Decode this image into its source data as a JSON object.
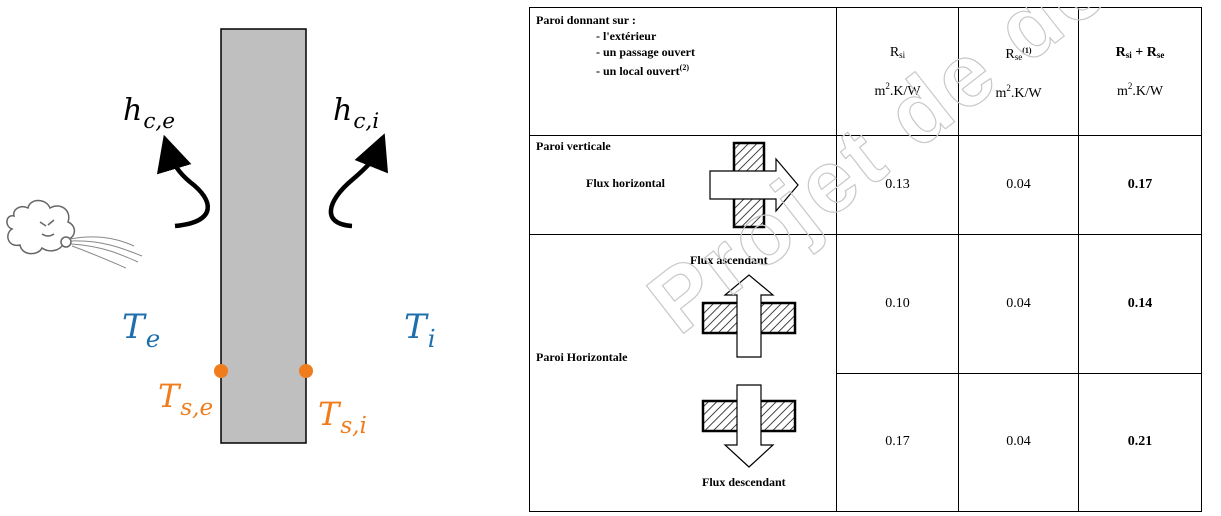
{
  "diagram": {
    "h_ce": {
      "base": "h",
      "sub": "c,e"
    },
    "h_ci": {
      "base": "h",
      "sub": "c,i"
    },
    "T_e": {
      "base": "T",
      "sub": "e"
    },
    "T_i": {
      "base": "T",
      "sub": "i"
    },
    "T_se": {
      "base": "T",
      "sub": "s,e"
    },
    "T_si": {
      "base": "T",
      "sub": "s,i"
    },
    "colors": {
      "blue": "#1f6fad",
      "orange": "#f07c1c",
      "wall": "#bfbfbf"
    }
  },
  "table": {
    "header": {
      "title": "Paroi donnant sur :",
      "opt1": "- l'extérieur",
      "opt2": "- un passage ouvert",
      "opt3": "- un local ouvert",
      "opt3_sup": "(2)",
      "rsi_base": "R",
      "rsi_sub": "si",
      "rse_base": "R",
      "rse_sub": "se",
      "rse_sup": "(1)",
      "sum_a": "R",
      "sum_a_sub": "si",
      "sum_plus": " + ",
      "sum_b": "R",
      "sum_b_sub": "se",
      "unit_m": "m",
      "unit_exp": "2",
      "unit_rest": ".K/W"
    },
    "rows": {
      "vert_label": "Paroi verticale",
      "vert_flux": "Flux horizontal",
      "vert_rsi": "0.13",
      "vert_rse": "0.04",
      "vert_sum": "0.17",
      "horiz_label": "Paroi Horizontale",
      "asc_label": "Flux ascendant",
      "asc_rsi": "0.10",
      "asc_rse": "0.04",
      "asc_sum": "0.14",
      "desc_label": "Flux descendant",
      "desc_rsi": "0.17",
      "desc_rse": "0.04",
      "desc_sum": "0.21"
    },
    "watermark": "Projet de document"
  }
}
